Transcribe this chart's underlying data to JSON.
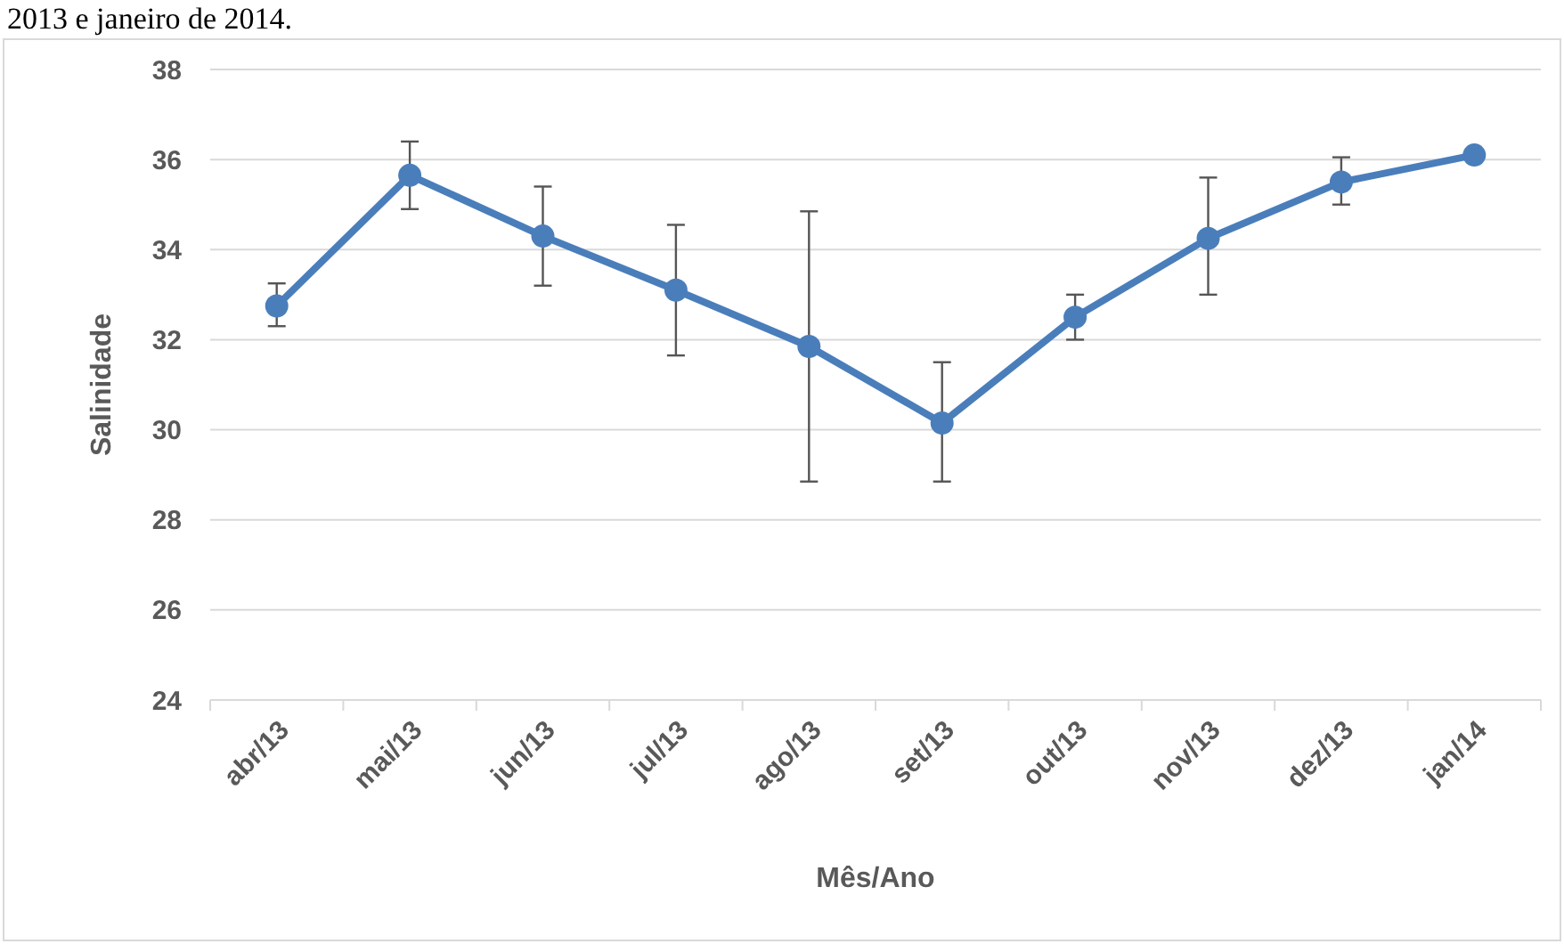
{
  "chart_data": {
    "type": "line",
    "xlabel": "Mês/Ano",
    "ylabel": "Salinidade",
    "annotations": [
      "2013 e janeiro de 2014."
    ],
    "categories": [
      "abr/13",
      "mai/13",
      "jun/13",
      "jul/13",
      "ago/13",
      "set/13",
      "out/13",
      "nov/13",
      "dez/13",
      "jan/14"
    ],
    "series": [
      {
        "color": "#4a7ebb",
        "values": [
          32.75,
          35.65,
          34.3,
          33.1,
          31.85,
          30.15,
          32.5,
          34.25,
          35.5,
          36.1
        ],
        "errors": [
          [
            32.3,
            33.25
          ],
          [
            34.9,
            36.4
          ],
          [
            33.2,
            35.4
          ],
          [
            31.65,
            34.55
          ],
          [
            28.85,
            34.85
          ],
          [
            28.85,
            31.5
          ],
          [
            32.0,
            33.0
          ],
          [
            33.0,
            35.6
          ],
          [
            35.0,
            36.05
          ],
          null
        ]
      }
    ],
    "ylim": [
      24,
      38
    ],
    "yticks": [
      24,
      26,
      28,
      30,
      32,
      34,
      36,
      38
    ],
    "grid": "y",
    "marker": "circle",
    "line_style": "solid"
  }
}
